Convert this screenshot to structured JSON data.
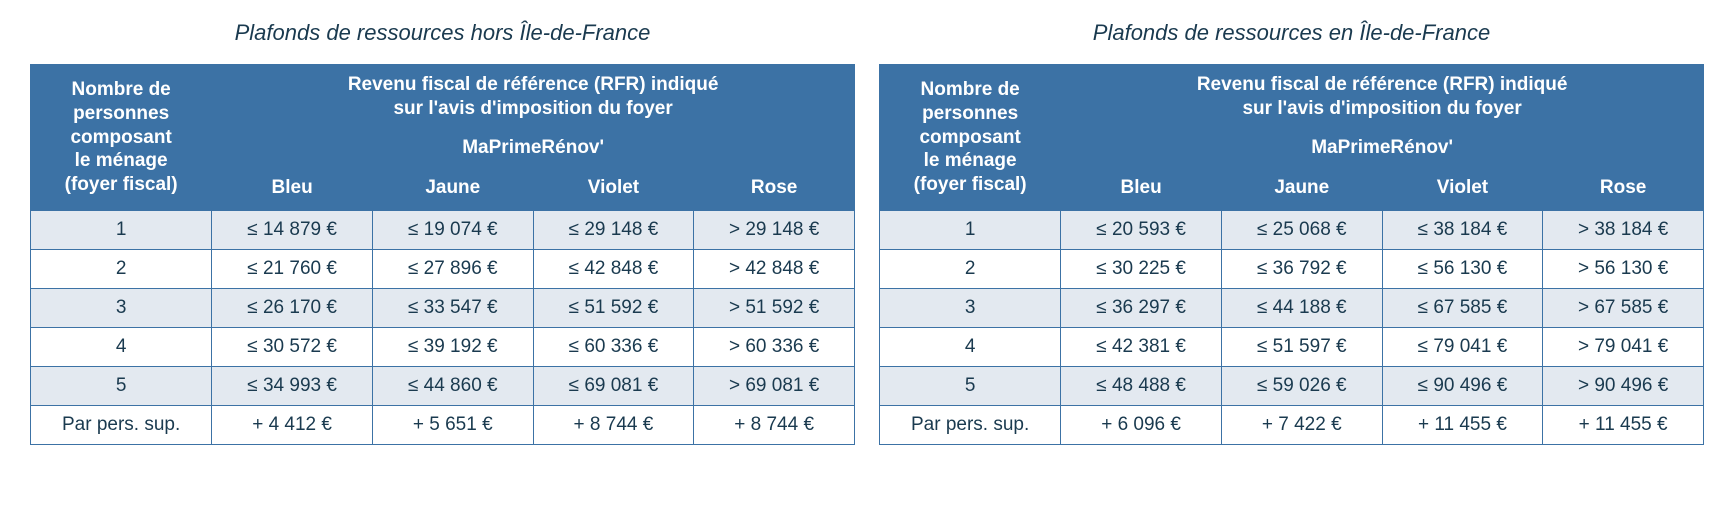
{
  "colors": {
    "header_bg": "#3c72a5",
    "border": "#3c72a5",
    "row_alt_bg": "#e3e9f0",
    "row_bg": "#ffffff",
    "text_dark": "#1a3a4f",
    "white": "#ffffff"
  },
  "shared": {
    "col_nombre_line1": "Nombre de",
    "col_nombre_line2": "personnes",
    "col_nombre_line3": "composant",
    "col_nombre_line4": "le ménage",
    "col_nombre_line5": "(foyer fiscal)",
    "rfr_line1": "Revenu fiscal de référence (RFR) indiqué",
    "rfr_line2": "sur l'avis d'imposition du foyer",
    "mpr_label": "MaPrimeRénov'",
    "col_bleu": "Bleu",
    "col_jaune": "Jaune",
    "col_violet": "Violet",
    "col_rose": "Rose",
    "row_labels": [
      "1",
      "2",
      "3",
      "4",
      "5",
      "Par pers. sup."
    ]
  },
  "left": {
    "title": "Plafonds de ressources hors Île-de-France",
    "rows": [
      [
        "≤ 14 879 €",
        "≤ 19 074 €",
        "≤ 29 148 €",
        "> 29 148 €"
      ],
      [
        "≤ 21 760 €",
        "≤ 27 896 €",
        "≤ 42 848 €",
        "> 42 848 €"
      ],
      [
        "≤ 26 170 €",
        "≤ 33 547 €",
        "≤ 51 592 €",
        "> 51 592 €"
      ],
      [
        "≤ 30 572 €",
        "≤ 39 192 €",
        "≤ 60 336 €",
        "> 60 336 €"
      ],
      [
        "≤ 34 993 €",
        "≤ 44 860 €",
        "≤ 69 081 €",
        "> 69 081 €"
      ],
      [
        "+ 4 412 €",
        "+ 5 651 €",
        "+ 8 744 €",
        "+ 8 744 €"
      ]
    ]
  },
  "right": {
    "title": "Plafonds de ressources en Île-de-France",
    "rows": [
      [
        "≤ 20 593 €",
        "≤ 25 068 €",
        "≤ 38 184 €",
        "> 38 184 €"
      ],
      [
        "≤ 30 225 €",
        "≤ 36 792 €",
        "≤ 56 130 €",
        "> 56 130 €"
      ],
      [
        "≤ 36 297 €",
        "≤ 44 188 €",
        "≤ 67 585 €",
        "> 67 585 €"
      ],
      [
        "≤ 42 381 €",
        "≤ 51 597 €",
        "≤ 79 041 €",
        "> 79 041 €"
      ],
      [
        "≤ 48 488 €",
        "≤ 59 026 €",
        "≤ 90 496 €",
        "> 90 496 €"
      ],
      [
        "+ 6 096 €",
        "+ 7 422 €",
        "+ 11 455 €",
        "+ 11 455 €"
      ]
    ]
  }
}
